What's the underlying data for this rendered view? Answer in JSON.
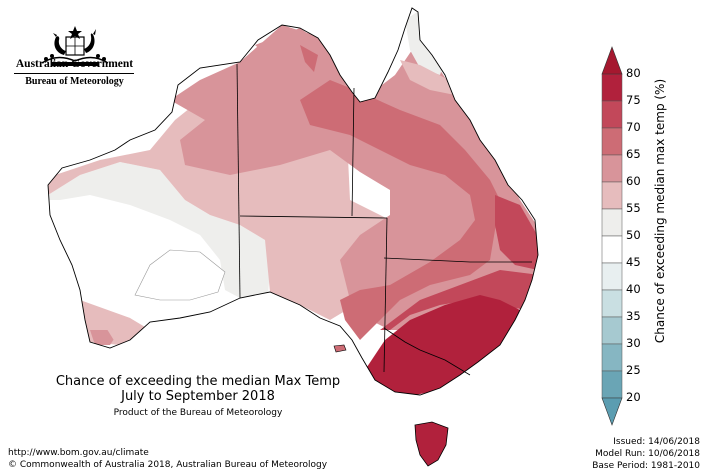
{
  "header": {
    "org_name": "Australian Government",
    "agency_name": "Bureau of Meteorology"
  },
  "map": {
    "title_line1": "Chance of exceeding the median Max Temp",
    "title_line2": "July to September 2018",
    "subtitle": "Product of the Bureau of Meteorology"
  },
  "legend": {
    "title": "Chance of exceeding median max temp (%)",
    "ticks": [
      "80",
      "75",
      "70",
      "65",
      "60",
      "55",
      "50",
      "45",
      "40",
      "35",
      "30",
      "25",
      "20"
    ],
    "colors": [
      "#b1213c",
      "#c2485a",
      "#cd6c75",
      "#d8949a",
      "#e6bcbd",
      "#eeeeec",
      "#ffffff",
      "#e8eff0",
      "#c9dfe2",
      "#a6c9d0",
      "#86b6c2",
      "#6aa5b5"
    ]
  },
  "footer": {
    "url": "http://www.bom.gov.au/climate",
    "copyright": "© Commonwealth of Australia 2018, Australian Bureau of Meteorology",
    "issued": "Issued: 14/06/2018",
    "model_run": "Model Run: 10/06/2018",
    "base_period": "Base Period: 1981-2010"
  }
}
